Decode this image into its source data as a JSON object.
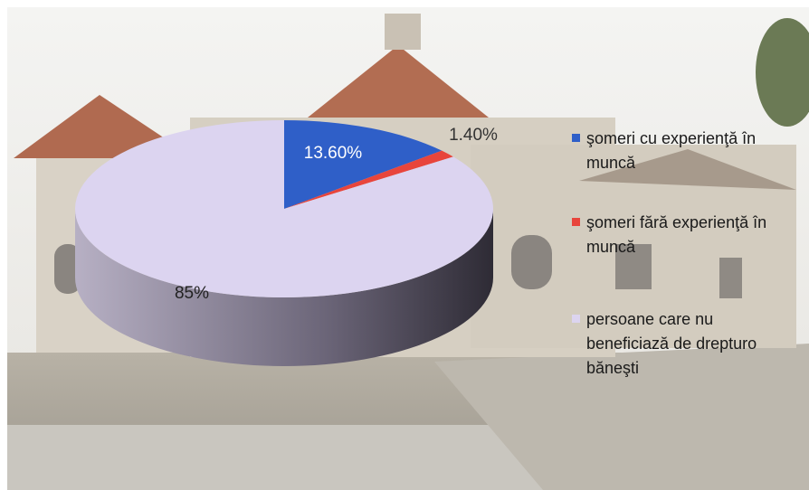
{
  "chart_data": {
    "type": "pie",
    "categories": [
      "şomeri cu experienţă în muncă",
      "şomeri fără experienţă în muncă",
      "persoane care nu beneficiază de drepturo băneşti"
    ],
    "values": [
      13.6,
      1.4,
      85
    ],
    "value_labels": [
      "13.60%",
      "1.40%",
      "85%"
    ],
    "colors": [
      "#2f5fc8",
      "#e8453c",
      "#dcd4f0"
    ],
    "legend": "right"
  }
}
